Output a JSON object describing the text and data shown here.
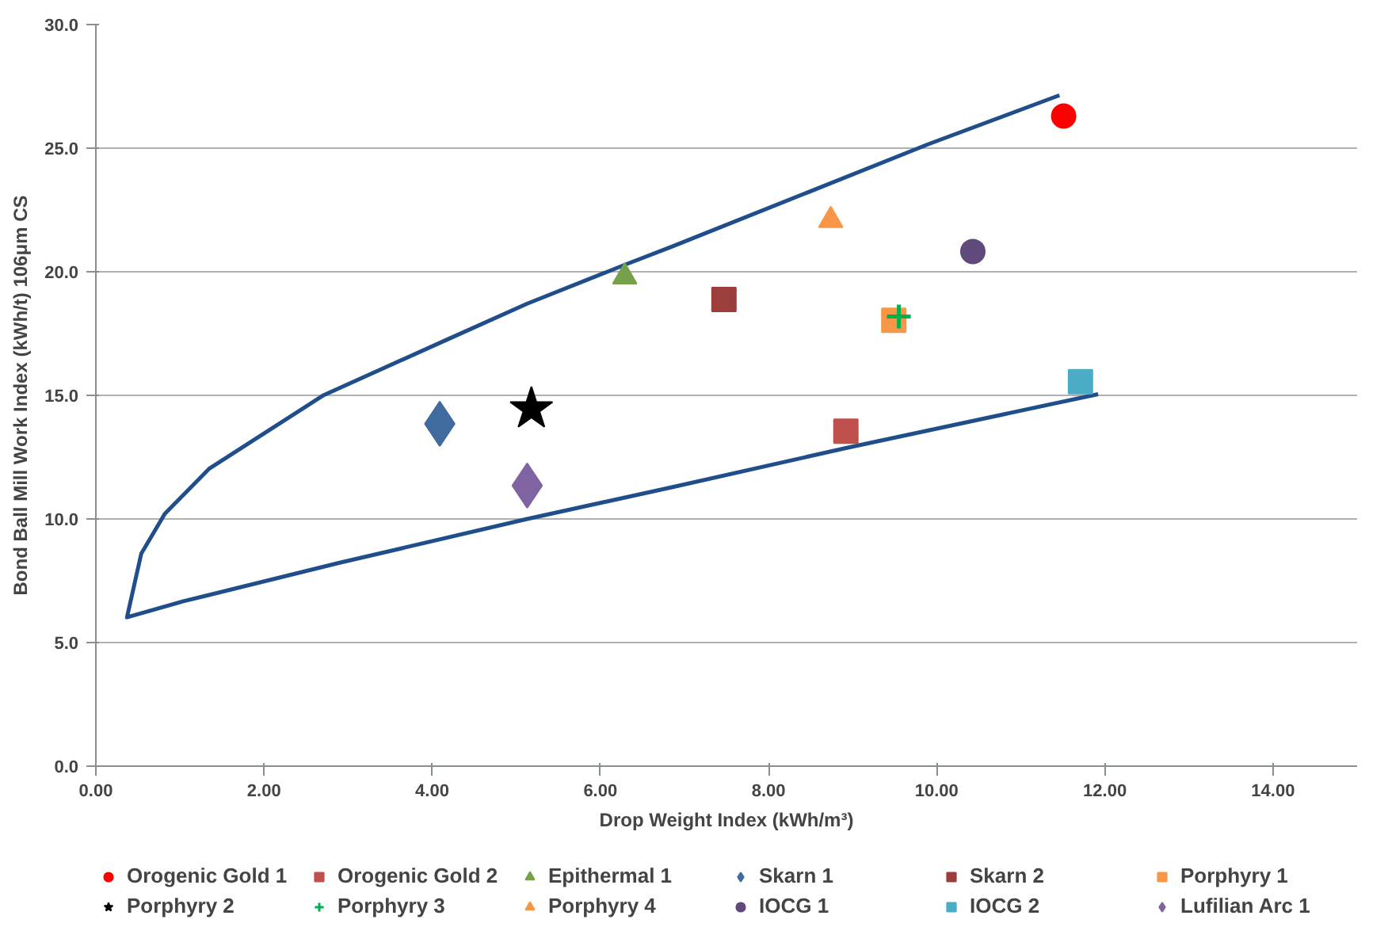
{
  "chart_data": {
    "type": "scatter",
    "xlabel": "Drop Weight Index (kWh/m³)",
    "ylabel": "Bond Ball Mill Work Index (kWh/t) 106μm CS",
    "xlim": [
      0,
      15
    ],
    "ylim": [
      0,
      30
    ],
    "xticks": [
      {
        "value": 0,
        "label": "0.00"
      },
      {
        "value": 2,
        "label": "2.00"
      },
      {
        "value": 4,
        "label": "4.00"
      },
      {
        "value": 6,
        "label": "6.00"
      },
      {
        "value": 8,
        "label": "8.00"
      },
      {
        "value": 10,
        "label": "10.00"
      },
      {
        "value": 12,
        "label": "12.00"
      },
      {
        "value": 14,
        "label": "14.00"
      }
    ],
    "yticks": [
      {
        "value": 0,
        "label": "0.0"
      },
      {
        "value": 5,
        "label": "5.0"
      },
      {
        "value": 10,
        "label": "10.0"
      },
      {
        "value": 15,
        "label": "15.0"
      },
      {
        "value": 20,
        "label": "20.0"
      },
      {
        "value": 25,
        "label": "25.0"
      },
      {
        "value": 30,
        "label": "30.0"
      }
    ],
    "grid": "y",
    "legend": "bottom",
    "series": [
      {
        "type": "line",
        "color": "#1f4e8a",
        "marker": "none",
        "line_style": "solid",
        "x": [
          11.46,
          9.9,
          6.86,
          6.29,
          5.13,
          4.14,
          2.71,
          1.35,
          0.82,
          0.54,
          0.37,
          1.04,
          2.89,
          5.13,
          6.86,
          8.91,
          11.92
        ],
        "values": [
          27.14,
          25.16,
          21.03,
          20.28,
          18.71,
          17.2,
          15.01,
          12.04,
          10.21,
          8.6,
          6.02,
          6.67,
          8.22,
          10.0,
          11.29,
          12.86,
          15.05
        ]
      },
      {
        "name": "Orogenic Gold 1",
        "color": "#ff0000",
        "marker": "circle",
        "x": [
          11.51
        ],
        "values": [
          26.3
        ]
      },
      {
        "name": "Orogenic Gold 2",
        "color": "#c0504d",
        "marker": "square",
        "x": [
          8.92
        ],
        "values": [
          13.55
        ]
      },
      {
        "name": "Epithermal 1",
        "color": "#77a04a",
        "marker": "triangle",
        "x": [
          6.29
        ],
        "values": [
          19.8
        ]
      },
      {
        "name": "Skarn 1",
        "color": "#3f6b9e",
        "marker": "diamond",
        "x": [
          4.09
        ],
        "values": [
          13.85
        ]
      },
      {
        "name": "Skarn 2",
        "color": "#9b3e3c",
        "marker": "square",
        "x": [
          7.47
        ],
        "values": [
          18.88
        ]
      },
      {
        "name": "Porphyry 1",
        "color": "#f79646",
        "marker": "square",
        "x": [
          9.49
        ],
        "values": [
          18.04
        ]
      },
      {
        "name": "Porphyry 2",
        "color": "#000000",
        "marker": "star",
        "x": [
          5.18
        ],
        "values": [
          14.45
        ]
      },
      {
        "name": "Porphyry 3",
        "color": "#00b050",
        "marker": "cross",
        "x": [
          9.55
        ],
        "values": [
          18.19
        ]
      },
      {
        "name": "Porphyry 4",
        "color": "#f79646",
        "marker": "triangle",
        "x": [
          8.74
        ],
        "values": [
          22.08
        ]
      },
      {
        "name": "IOCG 1",
        "color": "#604a7b",
        "marker": "circle",
        "x": [
          10.43
        ],
        "values": [
          20.82
        ]
      },
      {
        "name": "IOCG 2",
        "color": "#4bacc6",
        "marker": "square",
        "x": [
          11.71
        ],
        "values": [
          15.55
        ]
      },
      {
        "name": "Lufilian Arc 1",
        "color": "#8064a2",
        "marker": "diamond",
        "x": [
          5.13
        ],
        "values": [
          11.35
        ]
      }
    ]
  }
}
